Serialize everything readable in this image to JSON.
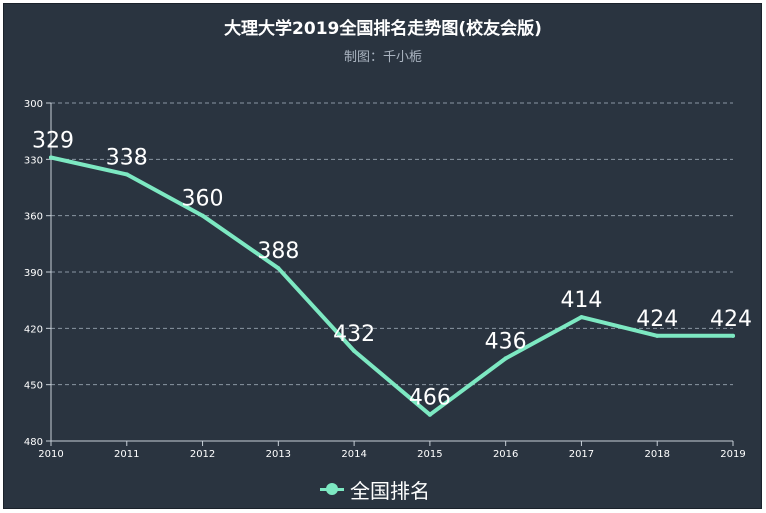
{
  "chart_data": {
    "type": "line",
    "title": "大理大学2019全国排名走势图(校友会版)",
    "subtitle": "制图：千小栀",
    "categories": [
      "2010",
      "2011",
      "2012",
      "2013",
      "2014",
      "2015",
      "2016",
      "2017",
      "2018",
      "2019"
    ],
    "series": [
      {
        "name": "全国排名",
        "values": [
          329,
          338,
          360,
          388,
          432,
          466,
          436,
          414,
          424,
          424
        ]
      }
    ],
    "y_ticks": [
      "300",
      "330",
      "360",
      "390",
      "420",
      "450",
      "480"
    ],
    "ylim": [
      300,
      480
    ],
    "y_inverted": true,
    "grid": true,
    "legend_position": "bottom-center",
    "colors": {
      "background": "#2a3440",
      "series": "#7de8c2",
      "text": "#ffffff",
      "grid": "#8a96a3"
    }
  }
}
